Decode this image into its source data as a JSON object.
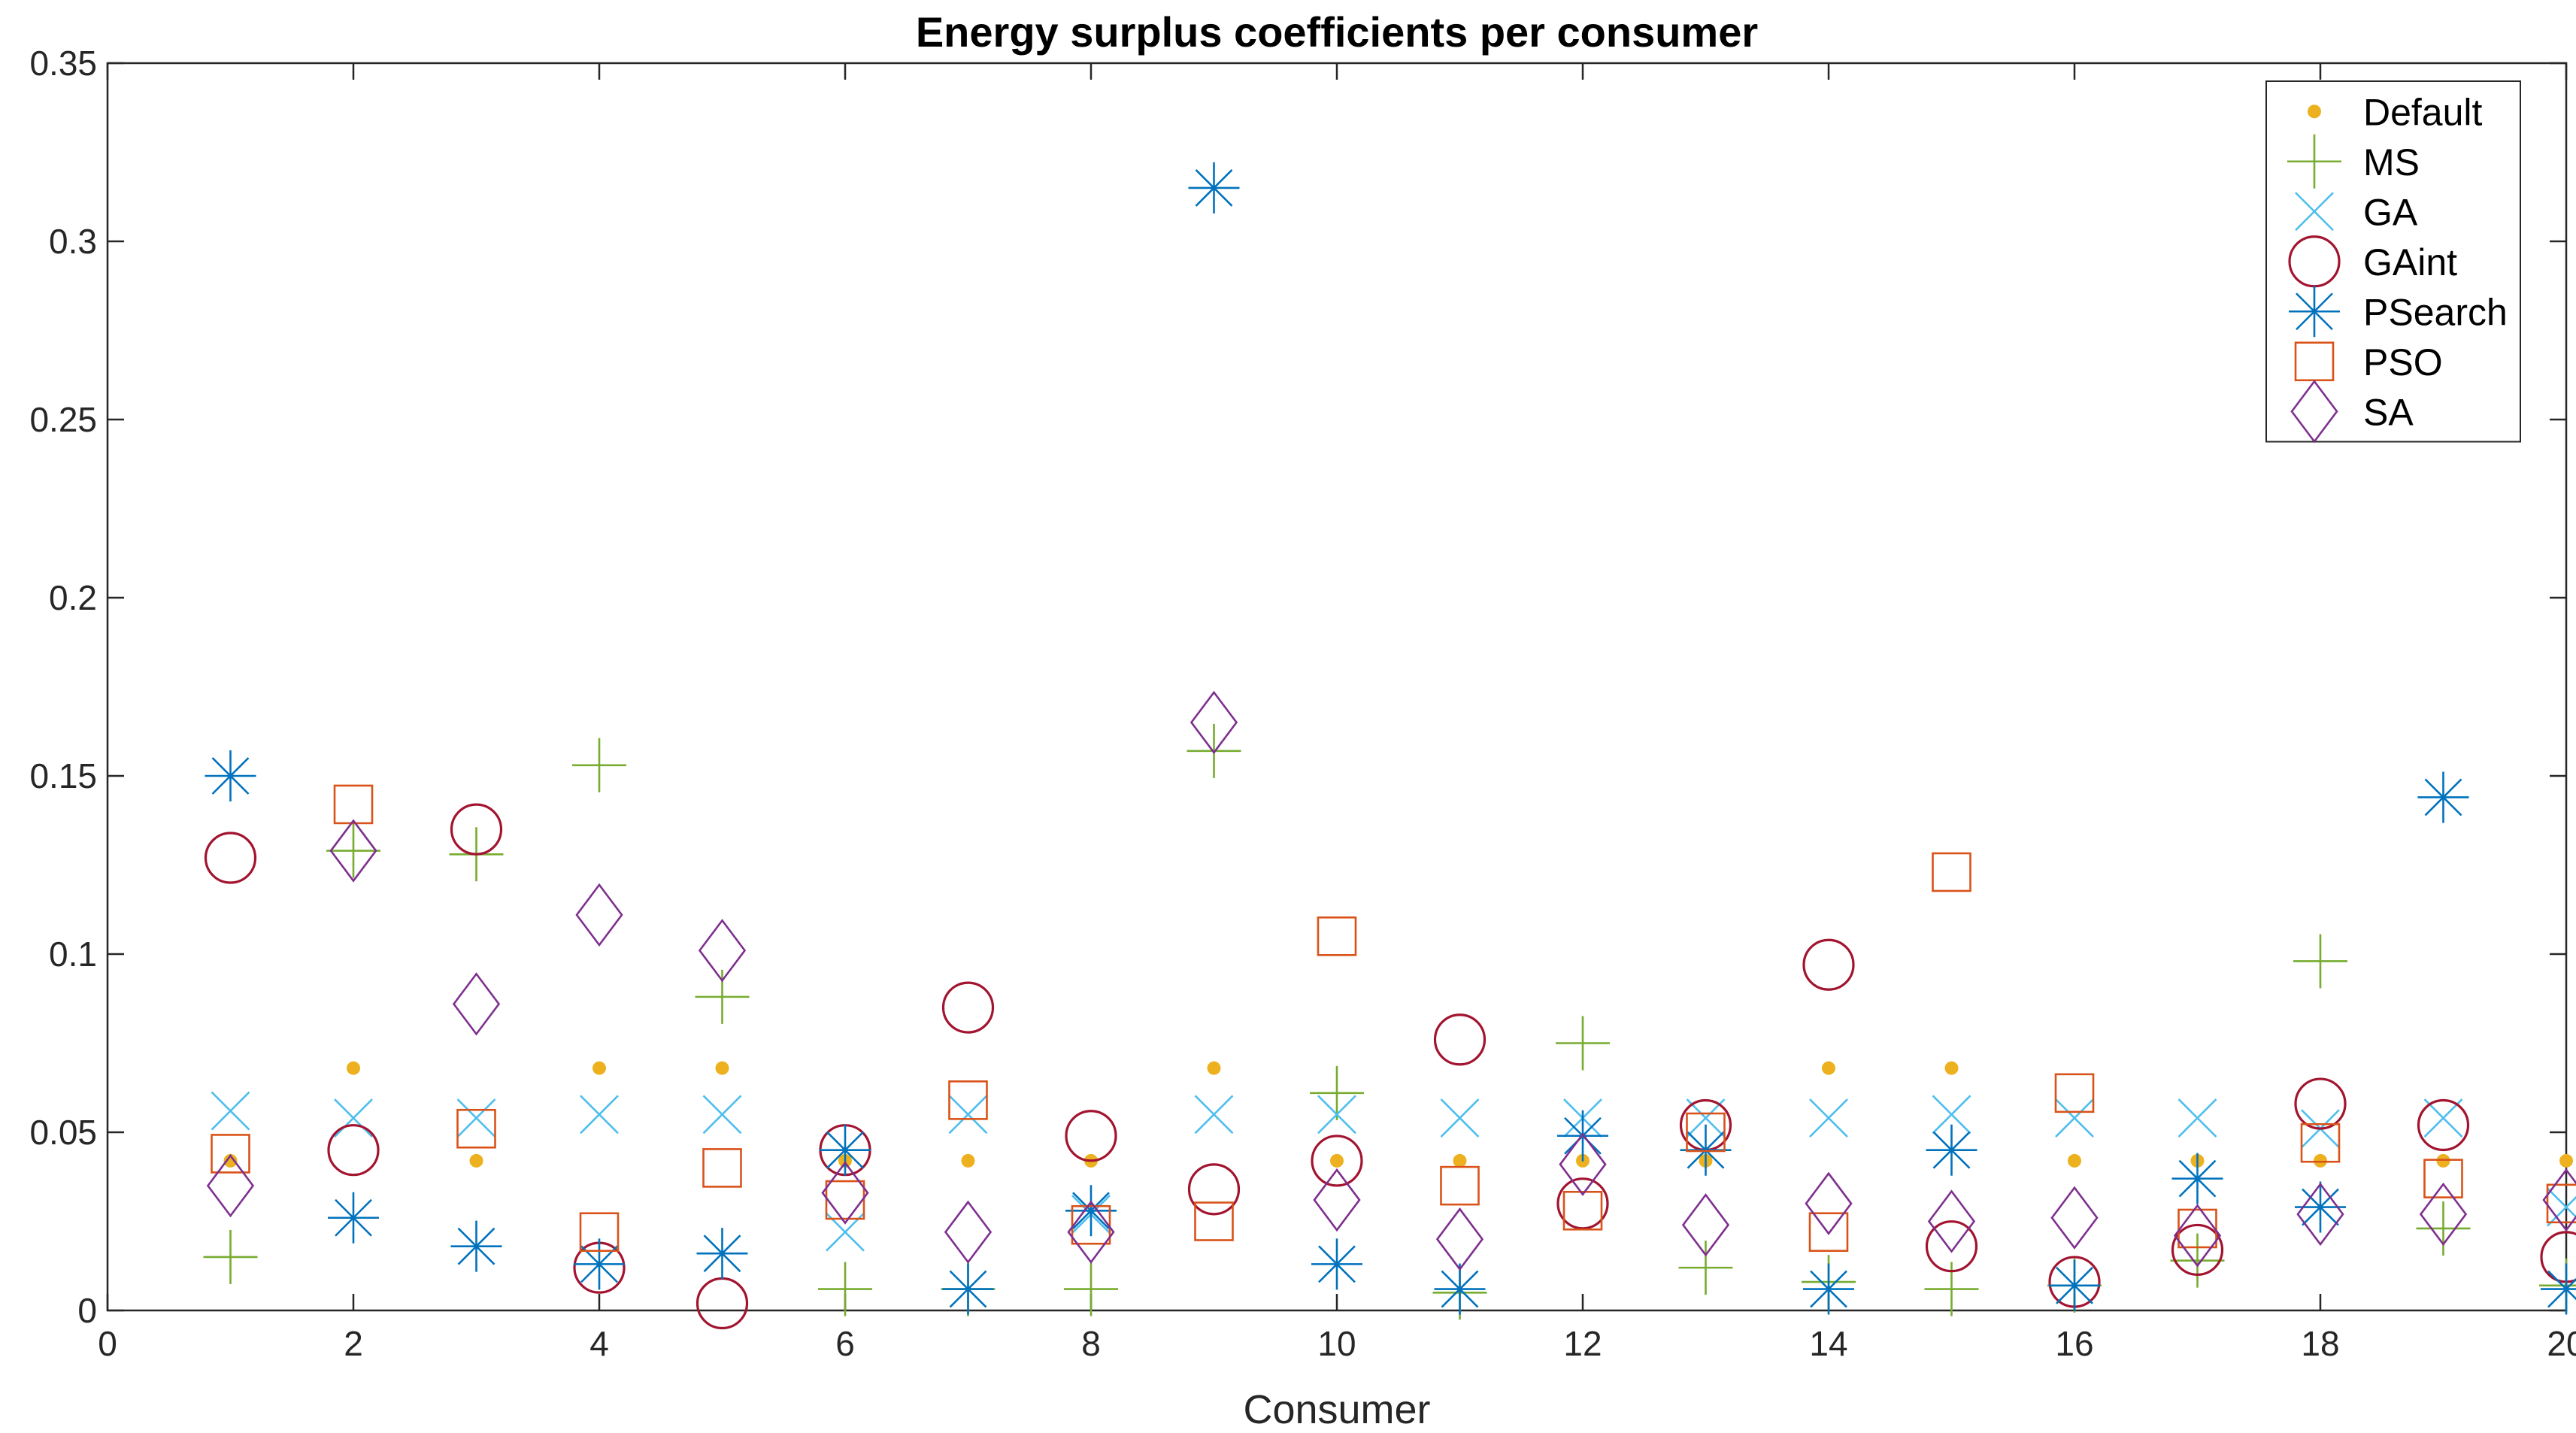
{
  "chart_data": {
    "type": "scatter",
    "title": "Energy surplus coefficients per consumer",
    "xlabel": "Consumer",
    "ylabel": "",
    "xlim": [
      0,
      20
    ],
    "ylim": [
      0,
      0.35
    ],
    "x_ticks": [
      0,
      2,
      4,
      6,
      8,
      10,
      12,
      14,
      16,
      18,
      20
    ],
    "x_tick_labels": [
      "0",
      "2",
      "4",
      "6",
      "8",
      "10",
      "12",
      "14",
      "16",
      "18",
      "20"
    ],
    "y_ticks": [
      0,
      0.05,
      0.1,
      0.15,
      0.2,
      0.25,
      0.3,
      0.35
    ],
    "y_tick_labels": [
      "0",
      "0.05",
      "0.1",
      "0.15",
      "0.2",
      "0.25",
      "0.3",
      "0.35"
    ],
    "grid": false,
    "legend_position": "top-right",
    "x": [
      1,
      2,
      3,
      4,
      5,
      6,
      7,
      8,
      9,
      10,
      11,
      12,
      13,
      14,
      15,
      16,
      17,
      18,
      19,
      20
    ],
    "series": [
      {
        "name": "Default",
        "marker": "dot",
        "color": "#EDB120",
        "values": [
          0.042,
          0.068,
          0.042,
          0.068,
          0.068,
          0.042,
          0.042,
          0.042,
          0.068,
          0.042,
          0.042,
          0.042,
          0.042,
          0.068,
          0.068,
          0.042,
          0.042,
          0.042,
          0.042,
          0.042
        ]
      },
      {
        "name": "MS",
        "marker": "plus",
        "color": "#77AC30",
        "values": [
          0.015,
          0.129,
          0.128,
          0.153,
          0.088,
          0.006,
          0.006,
          0.006,
          0.157,
          0.061,
          0.005,
          0.075,
          0.012,
          0.008,
          0.006,
          0.007,
          0.014,
          0.098,
          0.023,
          0.007
        ]
      },
      {
        "name": "GA",
        "marker": "x",
        "color": "#4DBEEE",
        "values": [
          0.056,
          0.054,
          0.054,
          0.055,
          0.055,
          0.022,
          0.055,
          0.027,
          0.055,
          0.055,
          0.054,
          0.054,
          0.054,
          0.054,
          0.055,
          0.054,
          0.054,
          0.051,
          0.054,
          0.029
        ]
      },
      {
        "name": "GAint",
        "marker": "circle",
        "color": "#A2142F",
        "values": [
          0.127,
          0.045,
          0.135,
          0.012,
          0.002,
          0.045,
          0.085,
          0.049,
          0.034,
          0.042,
          0.076,
          0.03,
          0.052,
          0.097,
          0.018,
          0.008,
          0.017,
          0.058,
          0.052,
          0.015
        ]
      },
      {
        "name": "PSearch",
        "marker": "asterisk",
        "color": "#0072BD",
        "values": [
          0.15,
          0.026,
          0.018,
          0.013,
          0.016,
          0.045,
          0.006,
          0.028,
          0.315,
          0.013,
          0.006,
          0.049,
          0.045,
          0.006,
          0.045,
          0.007,
          0.037,
          0.029,
          0.144,
          0.006
        ]
      },
      {
        "name": "PSO",
        "marker": "square",
        "color": "#D95319",
        "values": [
          0.044,
          0.142,
          0.051,
          0.022,
          0.04,
          0.031,
          0.059,
          0.024,
          0.025,
          0.105,
          0.035,
          0.028,
          0.05,
          0.022,
          0.123,
          0.061,
          0.023,
          0.047,
          0.037,
          0.03
        ]
      },
      {
        "name": "SA",
        "marker": "diamond",
        "color": "#7E2F8E",
        "values": [
          0.035,
          0.129,
          0.086,
          0.111,
          0.101,
          0.033,
          0.022,
          0.022,
          0.165,
          0.031,
          0.02,
          0.041,
          0.024,
          0.03,
          0.025,
          0.026,
          0.021,
          0.027,
          0.027,
          0.031
        ]
      }
    ]
  }
}
